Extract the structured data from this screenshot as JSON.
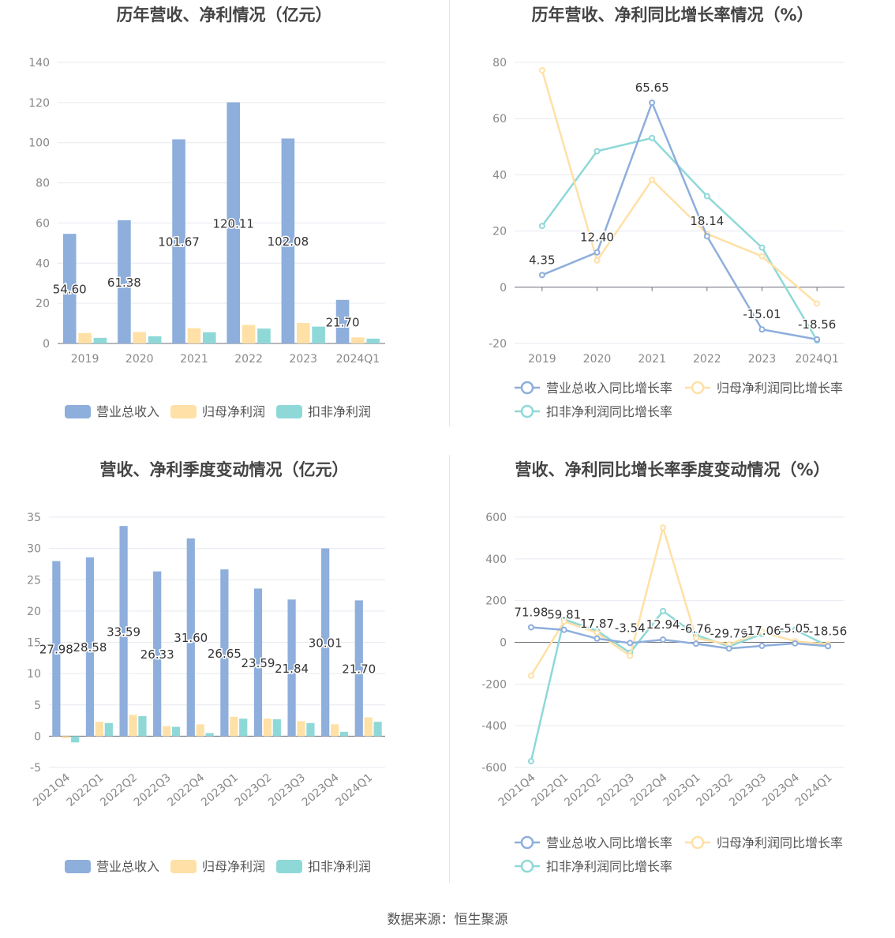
{
  "source_label": "数据来源：恒生聚源",
  "colors": {
    "revenue": "#8eaedc",
    "net_profit": "#ffe0a6",
    "deducted": "#8fd8d8",
    "grid": "#e6e9f0",
    "axis_text": "#888888",
    "title": "#444444"
  },
  "chart_data": [
    {
      "type": "bar",
      "title": "历年营收、净利情况（亿元）",
      "categories": [
        "2019",
        "2020",
        "2021",
        "2022",
        "2023",
        "2024Q1"
      ],
      "ylim": [
        0,
        140
      ],
      "yticks": [
        0,
        20,
        40,
        60,
        80,
        100,
        120,
        140
      ],
      "grid": true,
      "legend": "bottom",
      "series": [
        {
          "name": "营业总收入",
          "values": [
            54.6,
            61.38,
            101.67,
            120.11,
            102.08,
            21.7
          ],
          "labels": [
            "54.60",
            "61.38",
            "101.67",
            "120.11",
            "102.08",
            "21.70"
          ]
        },
        {
          "name": "归母净利润",
          "values": [
            5.2,
            5.7,
            7.6,
            9.2,
            10.2,
            3.0
          ]
        },
        {
          "name": "扣非净利润",
          "values": [
            2.8,
            3.6,
            5.6,
            7.4,
            8.4,
            2.4
          ]
        }
      ]
    },
    {
      "type": "line",
      "title": "历年营收、净利同比增长率情况（%）",
      "categories": [
        "2019",
        "2020",
        "2021",
        "2022",
        "2023",
        "2024Q1"
      ],
      "ylim": [
        -20,
        80
      ],
      "yticks": [
        -20,
        0,
        20,
        40,
        60,
        80
      ],
      "grid": true,
      "legend": "bottom",
      "series": [
        {
          "name": "营业总收入同比增长率",
          "values": [
            4.35,
            12.4,
            65.65,
            18.14,
            -15.01,
            -18.56
          ],
          "labels": [
            "4.35",
            "12.40",
            "65.65",
            "18.14",
            "-15.01",
            "-18.56"
          ]
        },
        {
          "name": "归母净利润同比增长率",
          "values": [
            77.2,
            9.5,
            38.2,
            19.0,
            11.0,
            -5.8
          ]
        },
        {
          "name": "扣非净利润同比增长率",
          "values": [
            21.8,
            48.4,
            53.1,
            32.4,
            14.1,
            -18.9
          ]
        }
      ]
    },
    {
      "type": "bar",
      "title": "营收、净利季度变动情况（亿元）",
      "categories": [
        "2021Q4",
        "2022Q1",
        "2022Q2",
        "2022Q3",
        "2022Q4",
        "2023Q1",
        "2023Q2",
        "2023Q3",
        "2023Q4",
        "2024Q1"
      ],
      "ylim": [
        -5,
        35
      ],
      "yticks": [
        -5,
        0,
        5,
        10,
        15,
        20,
        25,
        30,
        35
      ],
      "grid": true,
      "legend": "bottom",
      "series": [
        {
          "name": "营业总收入",
          "values": [
            27.98,
            28.58,
            33.59,
            26.33,
            31.6,
            26.65,
            23.59,
            21.84,
            30.01,
            21.7
          ],
          "labels": [
            "27.98",
            "28.58",
            "33.59",
            "26.33",
            "31.60",
            "26.65",
            "23.59",
            "21.84",
            "30.01",
            "21.70"
          ]
        },
        {
          "name": "归母净利润",
          "values": [
            -0.3,
            2.3,
            3.4,
            1.6,
            1.9,
            3.1,
            2.8,
            2.4,
            1.9,
            3.0
          ]
        },
        {
          "name": "扣非净利润",
          "values": [
            -1.0,
            2.1,
            3.2,
            1.5,
            0.5,
            2.8,
            2.7,
            2.1,
            0.7,
            2.3
          ]
        }
      ]
    },
    {
      "type": "line",
      "title": "营收、净利同比增长率季度变动情况（%）",
      "categories": [
        "2021Q4",
        "2022Q1",
        "2022Q2",
        "2022Q3",
        "2022Q4",
        "2023Q1",
        "2023Q2",
        "2023Q3",
        "2023Q4",
        "2024Q1"
      ],
      "ylim": [
        -600,
        600
      ],
      "yticks": [
        -600,
        -400,
        -200,
        0,
        200,
        400,
        600
      ],
      "grid": true,
      "legend": "bottom",
      "series": [
        {
          "name": "营业总收入同比增长率",
          "values": [
            71.98,
            59.81,
            17.87,
            -3.54,
            12.94,
            -6.76,
            -29.79,
            -17.06,
            -5.05,
            -18.56
          ],
          "labels": [
            "71.98",
            "59.81",
            "17.87",
            "-3.54",
            "12.94",
            "-6.76",
            "-29.79",
            "-17.06",
            "-5.05",
            "-18.56"
          ]
        },
        {
          "name": "归母净利润同比增长率",
          "values": [
            -160,
            100,
            45,
            -65,
            550,
            20,
            -10,
            50,
            5,
            -10
          ]
        },
        {
          "name": "扣非净利润同比增长率",
          "values": [
            -570,
            110,
            55,
            -50,
            150,
            35,
            -20,
            40,
            60,
            -18
          ]
        }
      ]
    }
  ]
}
